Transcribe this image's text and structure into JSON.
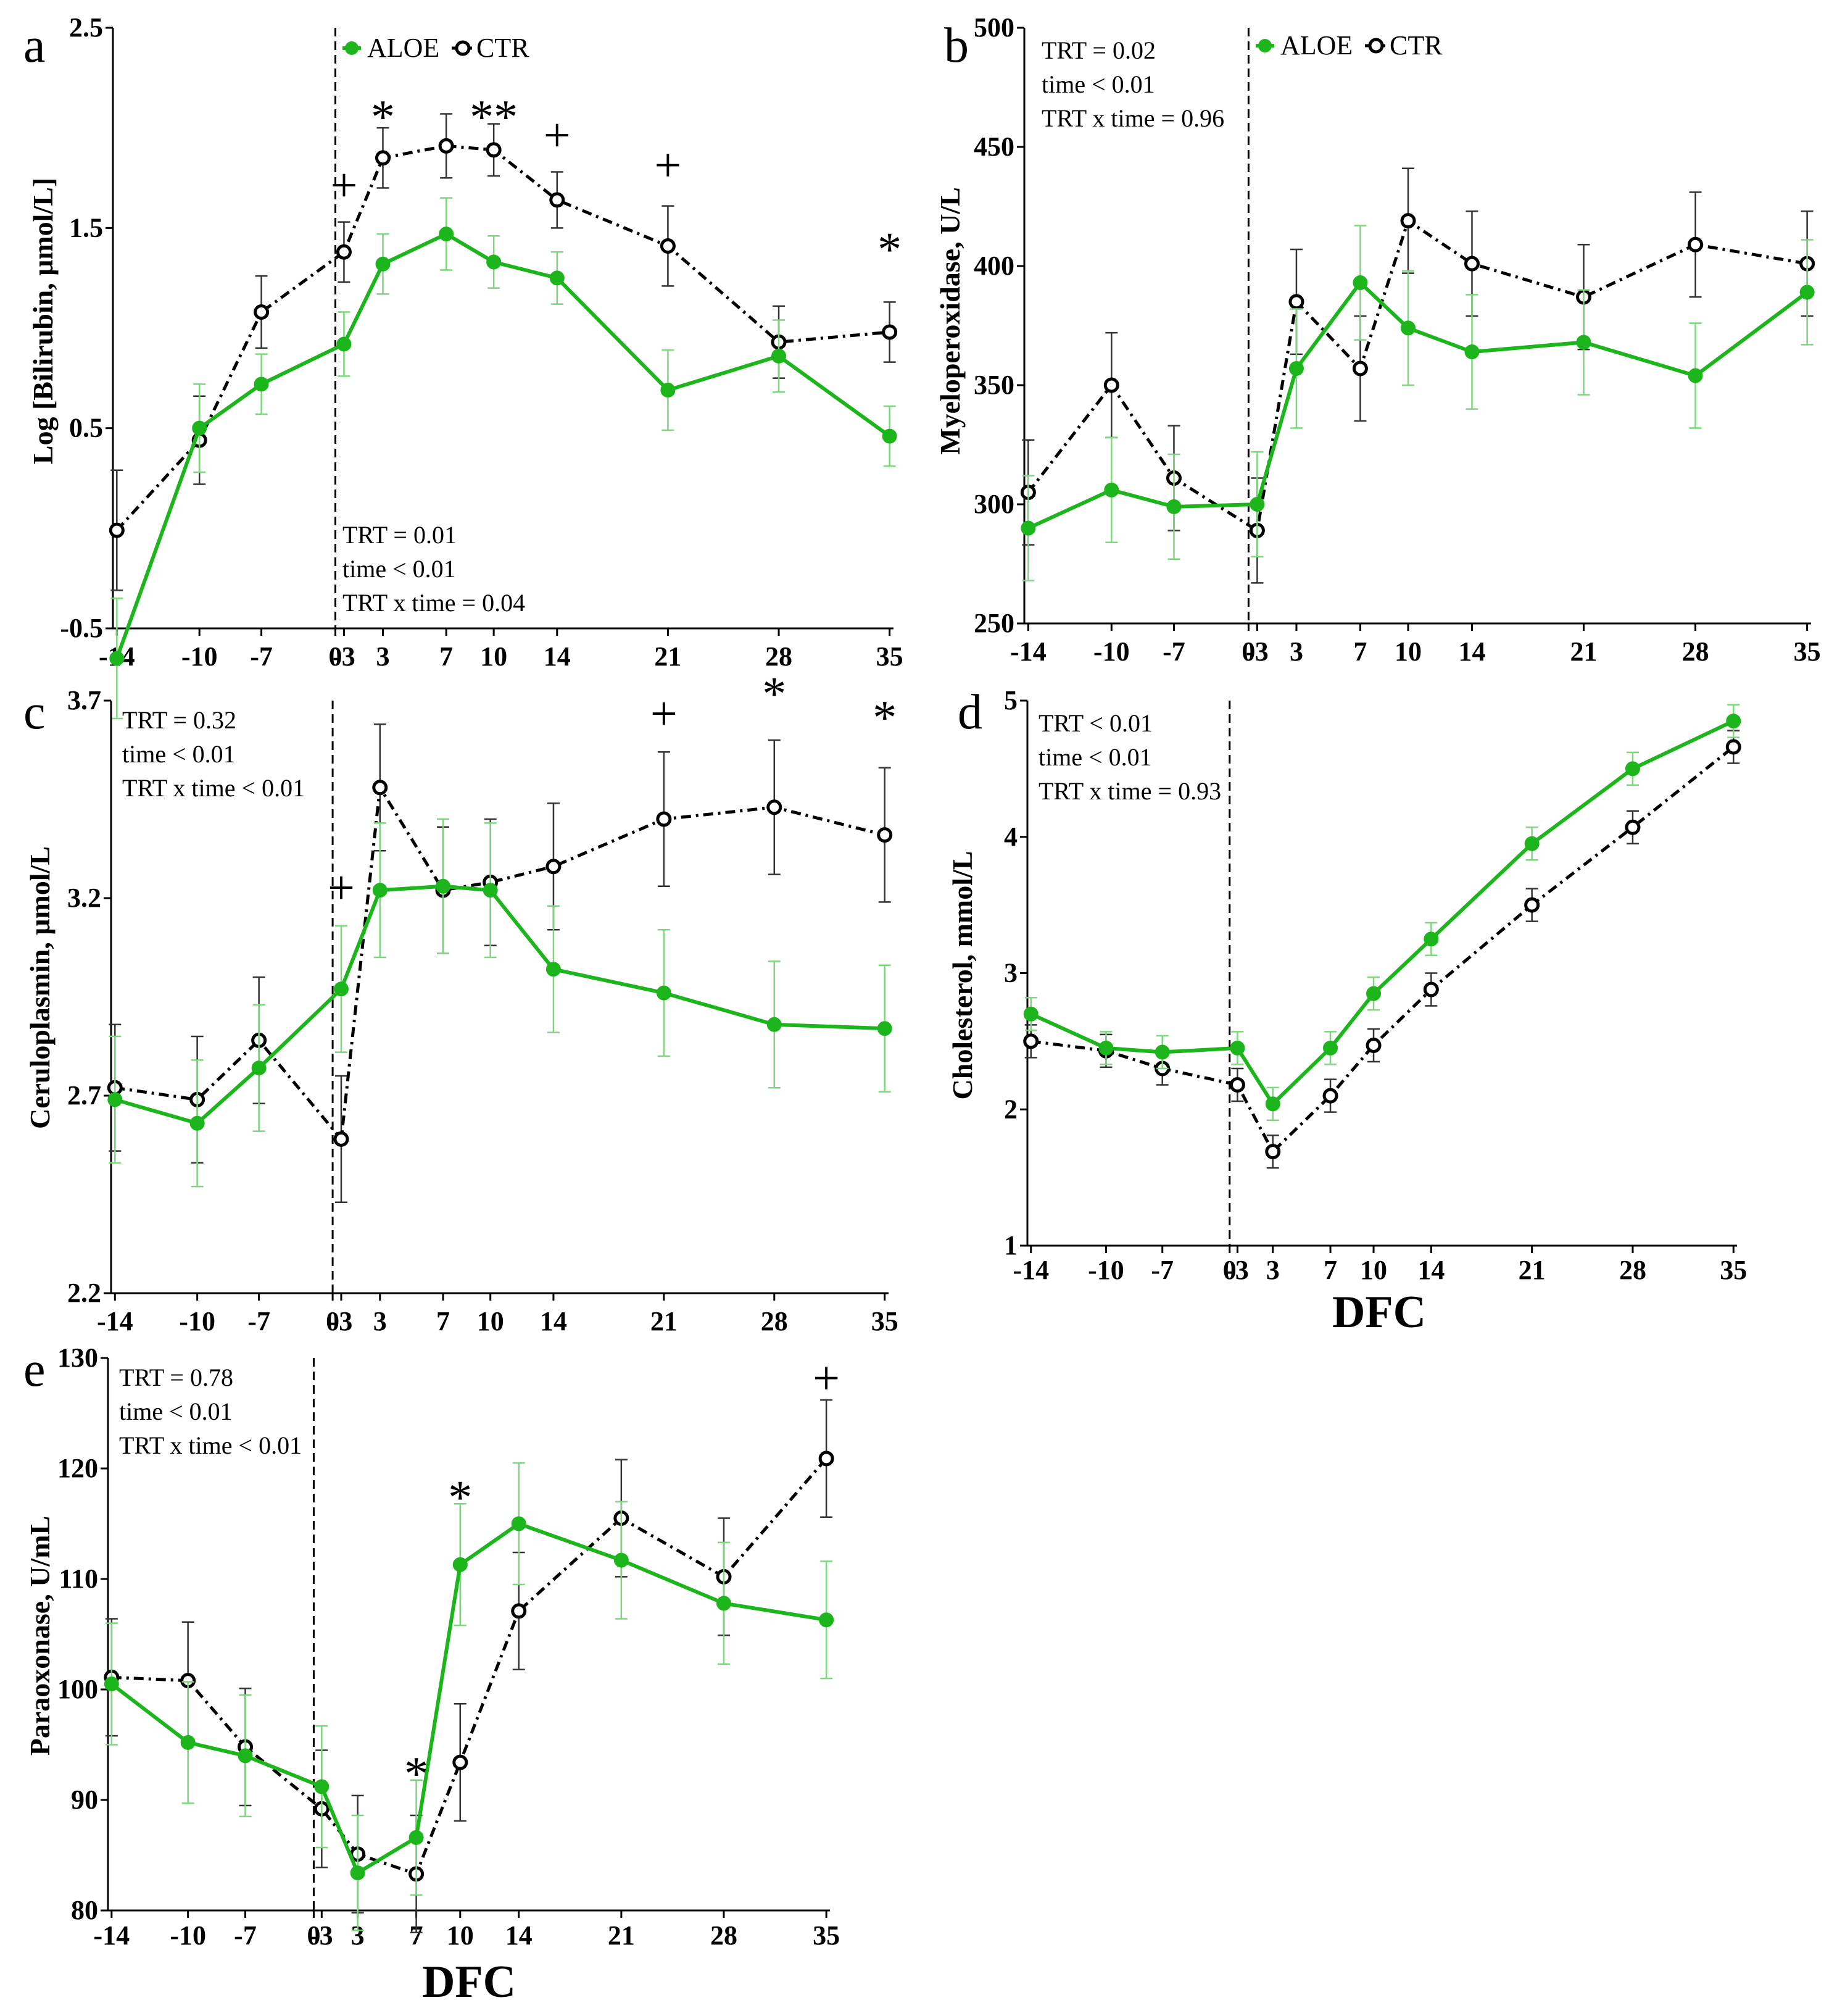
{
  "figure": {
    "colors": {
      "aloe": "#1cb51c",
      "aloe_err": "#7ed67e",
      "ctr": "#000000",
      "ctr_err": "#333333"
    },
    "legend": {
      "aloe": "ALOE",
      "ctr": "CTR"
    }
  },
  "chart_data": [
    {
      "id": "a",
      "panel": "a",
      "type": "line",
      "title": "",
      "xlabel": "",
      "ylabel": "Log [Bilirubin, μmol/L]",
      "ylim": [
        -0.5,
        2.5
      ],
      "yticks": [
        "-0.5",
        "0.5",
        "1.5",
        "2.5"
      ],
      "x": [
        -14,
        -10,
        -7,
        -3,
        3,
        7,
        10,
        14,
        21,
        28,
        35
      ],
      "xticks": [
        "-14",
        "-10",
        "-7",
        "-3",
        "0",
        "3",
        "7",
        "10",
        "14",
        "21",
        "28",
        "35"
      ],
      "legend": true,
      "stats": [
        "TRT = 0.01",
        "time < 0.01",
        "TRT x time = 0.04"
      ],
      "stats_position": "bottom-left",
      "series": [
        {
          "name": "ALOE",
          "values": [
            -0.65,
            0.5,
            0.72,
            0.92,
            1.32,
            1.47,
            1.33,
            1.25,
            0.69,
            0.86,
            0.46
          ],
          "err": [
            0.3,
            0.22,
            0.15,
            0.16,
            0.15,
            0.18,
            0.13,
            0.13,
            0.2,
            0.18,
            0.15
          ]
        },
        {
          "name": "CTR",
          "values": [
            -0.01,
            0.44,
            1.08,
            1.38,
            1.85,
            1.91,
            1.89,
            1.64,
            1.41,
            0.93,
            0.98
          ],
          "err": [
            0.3,
            0.22,
            0.18,
            0.15,
            0.15,
            0.16,
            0.13,
            0.14,
            0.2,
            0.18,
            0.15
          ]
        }
      ],
      "annotations": [
        {
          "text": "+",
          "x": -3,
          "y": 1.72
        },
        {
          "text": "*",
          "x": 3,
          "y": 2.06
        },
        {
          "text": "**",
          "x": 10,
          "y": 2.06
        },
        {
          "text": "+",
          "x": 14,
          "y": 1.97
        },
        {
          "text": "+",
          "x": 21,
          "y": 1.82
        },
        {
          "text": "*",
          "x": 35,
          "y": 1.4
        }
      ]
    },
    {
      "id": "b",
      "panel": "b",
      "type": "line",
      "title": "",
      "xlabel": "",
      "ylabel": "Myeloperoxidase, U/L",
      "ylim": [
        250,
        500
      ],
      "yticks": [
        "250",
        "300",
        "350",
        "400",
        "450",
        "500"
      ],
      "x": [
        -14,
        -10,
        -7,
        -3,
        3,
        7,
        10,
        14,
        21,
        28,
        35
      ],
      "xticks": [
        "-14",
        "-10",
        "-7",
        "-3",
        "0",
        "3",
        "7",
        "10",
        "14",
        "21",
        "28",
        "35"
      ],
      "legend": true,
      "stats": [
        "TRT = 0.02",
        "time < 0.01",
        "TRT x time = 0.96"
      ],
      "stats_position": "top-left",
      "series": [
        {
          "name": "ALOE",
          "values": [
            290,
            306,
            299,
            300,
            357,
            393,
            374,
            364,
            368,
            354,
            389
          ],
          "err": [
            22,
            22,
            22,
            22,
            25,
            24,
            24,
            24,
            22,
            22,
            22
          ]
        },
        {
          "name": "CTR",
          "values": [
            305,
            350,
            311,
            289,
            385,
            357,
            419,
            401,
            387,
            409,
            401
          ],
          "err": [
            22,
            22,
            22,
            22,
            22,
            22,
            22,
            22,
            22,
            22,
            22
          ]
        }
      ],
      "annotations": []
    },
    {
      "id": "c",
      "panel": "c",
      "type": "line",
      "title": "",
      "xlabel": "",
      "ylabel": "Ceruloplasmin, μmol/L",
      "ylim": [
        2.2,
        3.7
      ],
      "yticks": [
        "2.2",
        "2.7",
        "3.2",
        "3.7"
      ],
      "x": [
        -14,
        -10,
        -7,
        -3,
        3,
        7,
        10,
        14,
        21,
        28,
        35
      ],
      "xticks": [
        "-14",
        "-10",
        "-7",
        "-3",
        "0",
        "3",
        "7",
        "10",
        "14",
        "21",
        "28",
        "35"
      ],
      "legend": false,
      "stats": [
        "TRT = 0.32",
        "time < 0.01",
        "TRT x time < 0.01"
      ],
      "stats_position": "top-left",
      "series": [
        {
          "name": "ALOE",
          "values": [
            2.69,
            2.63,
            2.77,
            2.97,
            3.22,
            3.23,
            3.22,
            3.02,
            2.96,
            2.88,
            2.87
          ],
          "err": [
            0.16,
            0.16,
            0.16,
            0.16,
            0.17,
            0.17,
            0.17,
            0.16,
            0.16,
            0.16,
            0.16
          ]
        },
        {
          "name": "CTR",
          "values": [
            2.72,
            2.69,
            2.84,
            2.59,
            3.48,
            3.22,
            3.24,
            3.28,
            3.4,
            3.43,
            3.36
          ],
          "err": [
            0.16,
            0.16,
            0.16,
            0.16,
            0.16,
            0.16,
            0.16,
            0.16,
            0.17,
            0.17,
            0.17
          ]
        }
      ],
      "annotations": [
        {
          "text": "+",
          "x": -3,
          "y": 3.23
        },
        {
          "text": "+",
          "x": 21,
          "y": 3.67
        },
        {
          "text": "*",
          "x": 28,
          "y": 3.72
        },
        {
          "text": "*",
          "x": 35,
          "y": 3.66
        }
      ]
    },
    {
      "id": "d",
      "panel": "d",
      "type": "line",
      "title": "",
      "xlabel": "DFC",
      "ylabel": "Cholesterol, mmol/L",
      "ylim": [
        1,
        5
      ],
      "yticks": [
        "1",
        "2",
        "3",
        "4",
        "5"
      ],
      "x": [
        -14,
        -10,
        -7,
        -3,
        3,
        7,
        10,
        14,
        21,
        28,
        35
      ],
      "xticks": [
        "-14",
        "-10",
        "-7",
        "-3",
        "0",
        "3",
        "7",
        "10",
        "14",
        "21",
        "28",
        "35"
      ],
      "legend": false,
      "stats": [
        "TRT < 0.01",
        "time < 0.01",
        "TRT x time = 0.93"
      ],
      "stats_position": "top-left",
      "series": [
        {
          "name": "ALOE",
          "values": [
            2.7,
            2.45,
            2.42,
            2.45,
            2.04,
            2.45,
            2.85,
            3.25,
            3.95,
            4.5,
            4.85
          ],
          "err": [
            0.12,
            0.12,
            0.12,
            0.12,
            0.12,
            0.12,
            0.12,
            0.12,
            0.12,
            0.12,
            0.12
          ]
        },
        {
          "name": "CTR",
          "values": [
            2.5,
            2.43,
            2.3,
            2.18,
            1.69,
            2.1,
            2.47,
            2.88,
            3.5,
            4.07,
            4.66
          ],
          "err": [
            0.12,
            0.12,
            0.12,
            0.12,
            0.12,
            0.12,
            0.12,
            0.12,
            0.12,
            0.12,
            0.12
          ]
        }
      ],
      "annotations": []
    },
    {
      "id": "e",
      "panel": "e",
      "type": "line",
      "title": "",
      "xlabel": "DFC",
      "ylabel": "Paraoxonase, U/mL",
      "ylim": [
        80,
        130
      ],
      "yticks": [
        "80",
        "90",
        "100",
        "110",
        "120",
        "130"
      ],
      "x": [
        -14,
        -10,
        -7,
        -3,
        3,
        7,
        10,
        14,
        21,
        28,
        35
      ],
      "xticks": [
        "-14",
        "-10",
        "-7",
        "-3",
        "0",
        "3",
        "7",
        "10",
        "14",
        "21",
        "28",
        "35"
      ],
      "legend": false,
      "stats": [
        "TRT = 0.78",
        "time < 0.01",
        "TRT x time  < 0.01"
      ],
      "stats_position": "top-left",
      "series": [
        {
          "name": "ALOE",
          "values": [
            100.5,
            95.2,
            94.0,
            91.2,
            83.4,
            86.6,
            111.3,
            115.0,
            111.7,
            107.8,
            106.3
          ],
          "err": [
            5.5,
            5.5,
            5.5,
            5.5,
            5.2,
            5.2,
            5.5,
            5.5,
            5.3,
            5.5,
            5.3
          ]
        },
        {
          "name": "CTR",
          "values": [
            101.1,
            100.8,
            94.8,
            89.2,
            85.1,
            83.3,
            93.4,
            107.1,
            115.5,
            110.2,
            120.9
          ],
          "err": [
            5.3,
            5.3,
            5.3,
            5.3,
            5.3,
            5.3,
            5.3,
            5.3,
            5.3,
            5.3,
            5.3
          ]
        }
      ],
      "annotations": [
        {
          "text": "*",
          "x": 7,
          "y": 92.5
        },
        {
          "text": "*",
          "x": 10,
          "y": 117.5
        },
        {
          "text": "+",
          "x": 35,
          "y": 128.3
        }
      ]
    }
  ]
}
